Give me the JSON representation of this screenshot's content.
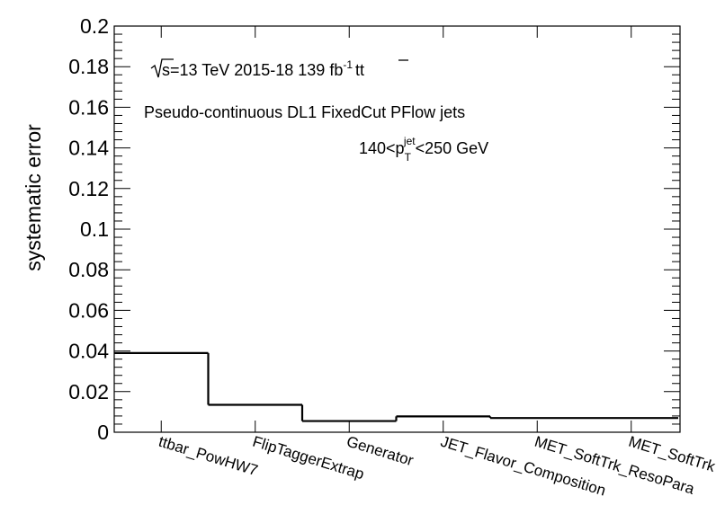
{
  "chart_data": {
    "type": "step",
    "ylabel": "systematic error",
    "xlabel": "",
    "ylim": [
      0,
      0.2
    ],
    "yticks": [
      "0",
      "0.02",
      "0.04",
      "0.06",
      "0.08",
      "0.1",
      "0.12",
      "0.14",
      "0.16",
      "0.18",
      "0.2"
    ],
    "categories": [
      "ttbar_PowHW7",
      "FlipTaggerExtrap",
      "Generator",
      "JET_Flavor_Composition",
      "MET_SoftTrk_ResoPara",
      "MET_SoftTrk"
    ],
    "values": [
      0.039,
      0.0135,
      0.0055,
      0.0078,
      0.007,
      0.007
    ],
    "annotations": {
      "energy_prefix": "s=13 TeV  2015-18  139 fb",
      "lumi_exponent": "-1",
      "process": "tt",
      "tagger": "Pseudo-continuous DL1 FixedCut PFlow jets",
      "pt_range": {
        "low": "140<p",
        "sub": "T",
        "sup": "jet",
        "high": "<250 GeV"
      }
    }
  }
}
